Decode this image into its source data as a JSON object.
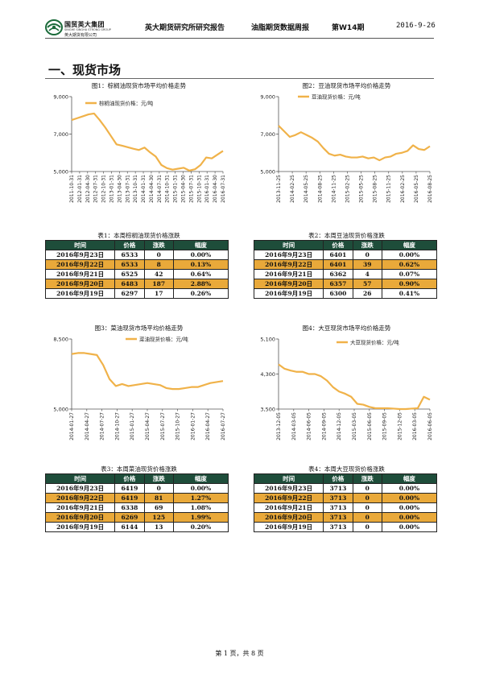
{
  "header": {
    "logo": {
      "cn": "国贸英大集团",
      "en": "SINGHE SINGHA STRONG GROUP",
      "co": "英大期货有限公司",
      "mark_color": "#1b6b3a"
    },
    "items": [
      "英大期货研究所研究报告",
      "油脂期货数据周报",
      "第W14期"
    ],
    "date": "2016-9-26"
  },
  "section": {
    "title": "一、现货市场"
  },
  "colors": {
    "line": "#f0b249",
    "header_bg": "#1e4d3a",
    "highlight": "#e9a93a"
  },
  "charts": [
    {
      "title": "图1：棕榈油现货市场平均价格走势",
      "legend": "棕榈油现货价格：元/吨"
    },
    {
      "title": "图2：豆油现货市场平均价格走势",
      "legend": "豆油现货价格：元/吨"
    },
    {
      "title": "图3：菜油现货市场平均价格走势",
      "legend": "菜油现货价格：元/吨"
    },
    {
      "title": "图4：大豆现货市场平均价格走势",
      "legend": "大豆现货价格：元/吨"
    }
  ],
  "chart_data": [
    {
      "type": "line",
      "legend_position": "top",
      "grid": false,
      "y_ticks": [
        "9,000",
        "7,000",
        "5,000"
      ],
      "ylim": [
        5000,
        9000
      ],
      "x_ticks": [
        "2011-10-31",
        "2012-01-31",
        "2012-04-30",
        "2012-07-31",
        "2012-10-31",
        "2013-01-31",
        "2013-04-30",
        "2013-07-31",
        "2013-10-31",
        "2014-01-31",
        "2014-04-30",
        "2014-07-31",
        "2014-10-31",
        "2015-01-31",
        "2015-04-30",
        "2015-07-31",
        "2015-10-31",
        "2016-01-31",
        "2016-04-30",
        "2016-07-31"
      ],
      "series": [
        {
          "name": "棕榈油现货价格：元/吨",
          "values": [
            7750,
            7850,
            7950,
            8050,
            8100,
            7750,
            7350,
            6900,
            6450,
            6380,
            6300,
            6220,
            6150,
            6280,
            6020,
            5800,
            5350,
            5180,
            5100,
            5150,
            5200,
            5050,
            5120,
            5350,
            5750,
            5700,
            5900,
            6100
          ]
        }
      ]
    },
    {
      "type": "line",
      "legend_position": "top",
      "grid": false,
      "y_ticks": [
        "9,000",
        "7,000",
        "5,000"
      ],
      "ylim": [
        5000,
        9000
      ],
      "x_ticks": [
        "2013-11-25",
        "2014-02-25",
        "2014-05-25",
        "2014-08-25",
        "2014-11-25",
        "2015-02-25",
        "2015-05-25",
        "2015-08-25",
        "2015-11-25",
        "2016-02-25",
        "2016-05-25",
        "2016-08-25"
      ],
      "series": [
        {
          "name": "豆油现货价格：元/吨",
          "values": [
            7450,
            7150,
            6850,
            6950,
            7100,
            6950,
            6800,
            6600,
            6250,
            5950,
            5850,
            5900,
            5800,
            5750,
            5750,
            5800,
            5700,
            5750,
            5600,
            5750,
            5800,
            5950,
            6000,
            6100,
            6400,
            6200,
            6150,
            6350
          ]
        }
      ]
    },
    {
      "type": "line",
      "legend_position": "top",
      "grid": false,
      "y_ticks": [
        "8,500",
        "5,000"
      ],
      "ylim": [
        5000,
        8500
      ],
      "x_ticks": [
        "2014-01-27",
        "2014-04-27",
        "2014-07-27",
        "2014-10-27",
        "2015-01-27",
        "2015-04-27",
        "2015-07-27",
        "2015-10-27",
        "2016-01-27",
        "2016-04-27",
        "2016-07-27"
      ],
      "series": [
        {
          "name": "菜油现货价格：元/吨",
          "values": [
            7750,
            7800,
            7800,
            7750,
            7700,
            7200,
            6500,
            6150,
            6250,
            6150,
            6200,
            6250,
            6300,
            6250,
            6200,
            6050,
            6000,
            6000,
            6050,
            6100,
            6100,
            6200,
            6300,
            6350,
            6400
          ]
        }
      ]
    },
    {
      "type": "line",
      "legend_position": "top",
      "grid": false,
      "y_ticks": [
        "5,100",
        "4,300",
        "3,500"
      ],
      "ylim": [
        3500,
        5100
      ],
      "x_ticks": [
        "2013-12-05",
        "2014-03-05",
        "2014-06-05",
        "2014-09-05",
        "2014-12-05",
        "2015-03-05",
        "2015-06-05",
        "2015-09-05",
        "2015-12-05",
        "2016-03-05",
        "2016-06-05"
      ],
      "series": [
        {
          "name": "大豆现货价格：元/吨",
          "values": [
            4520,
            4420,
            4380,
            4350,
            4350,
            4300,
            4300,
            4250,
            4150,
            4000,
            3900,
            3850,
            3780,
            3620,
            3600,
            3550,
            3520,
            3520,
            3520,
            3510,
            3500,
            3500,
            3510,
            3520,
            3780,
            3713
          ]
        }
      ]
    }
  ],
  "tables": [
    {
      "caption": "表1：本周棕榈油现货价格涨跌",
      "headers": [
        "时间",
        "价格",
        "涨跌",
        "幅度"
      ],
      "rows": [
        [
          "2016年9月23日",
          "6533",
          "0",
          "0.00%"
        ],
        [
          "2016年9月22日",
          "6533",
          "8",
          "0.13%"
        ],
        [
          "2016年9月21日",
          "6525",
          "42",
          "0.64%"
        ],
        [
          "2016年9月20日",
          "6483",
          "187",
          "2.88%"
        ],
        [
          "2016年9月19日",
          "6297",
          "17",
          "0.26%"
        ]
      ]
    },
    {
      "caption": "表2：本周豆油现货价格涨跌",
      "headers": [
        "时间",
        "价格",
        "涨跌",
        "幅度"
      ],
      "rows": [
        [
          "2016年9月23日",
          "6401",
          "0",
          "0.00%"
        ],
        [
          "2016年9月22日",
          "6401",
          "39",
          "0.62%"
        ],
        [
          "2016年9月21日",
          "6362",
          "4",
          "0.07%"
        ],
        [
          "2016年9月20日",
          "6357",
          "57",
          "0.90%"
        ],
        [
          "2016年9月19日",
          "6300",
          "26",
          "0.41%"
        ]
      ]
    },
    {
      "caption": "表3：本周菜油现货价格涨跌",
      "headers": [
        "时间",
        "价格",
        "涨跌",
        "幅度"
      ],
      "rows": [
        [
          "2016年9月23日",
          "6419",
          "0",
          "0.00%"
        ],
        [
          "2016年9月22日",
          "6419",
          "81",
          "1.27%"
        ],
        [
          "2016年9月21日",
          "6338",
          "69",
          "1.08%"
        ],
        [
          "2016年9月20日",
          "6269",
          "125",
          "1.99%"
        ],
        [
          "2016年9月19日",
          "6144",
          "13",
          "0.20%"
        ]
      ]
    },
    {
      "caption": "表4：本周大豆现货价格涨跌",
      "headers": [
        "时间",
        "价格",
        "涨跌",
        "幅度"
      ],
      "rows": [
        [
          "2016年9月23日",
          "3713",
          "0",
          "0.00%"
        ],
        [
          "2016年9月22日",
          "3713",
          "0",
          "0.00%"
        ],
        [
          "2016年9月21日",
          "3713",
          "0",
          "0.00%"
        ],
        [
          "2016年9月20日",
          "3713",
          "0",
          "0.00%"
        ],
        [
          "2016年9月19日",
          "3713",
          "0",
          "0.00%"
        ]
      ]
    }
  ],
  "footer": {
    "text": "第 1 页，共 8 页"
  }
}
